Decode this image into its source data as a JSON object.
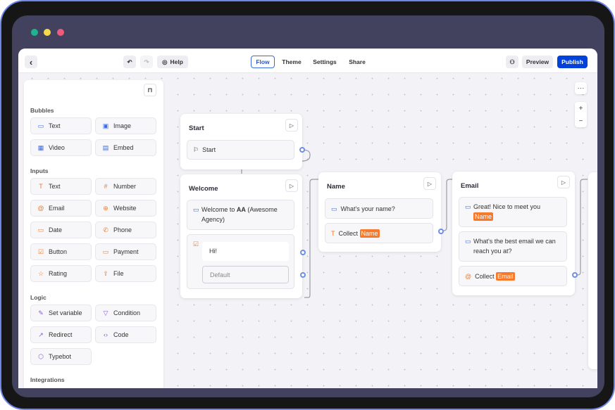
{
  "window": {
    "dots": [
      "#1fb28e",
      "#f6d94a",
      "#f05a7e"
    ]
  },
  "topbar": {
    "back": "‹",
    "undo": "↶",
    "redo": "↷",
    "help": "Help",
    "tabs": [
      "Flow",
      "Theme",
      "Settings",
      "Share"
    ],
    "active_tab": "Flow",
    "collab_icon": "users-icon",
    "preview": "Preview",
    "publish": "Publish",
    "accent": "#0042da"
  },
  "sidebar": {
    "lock_icon": "lock-icon",
    "sections": [
      {
        "title": "Bubbles",
        "items": [
          {
            "label": "Text",
            "icon": "▭"
          },
          {
            "label": "Image",
            "icon": "▣"
          },
          {
            "label": "Video",
            "icon": "▦"
          },
          {
            "label": "Embed",
            "icon": "▤"
          }
        ]
      },
      {
        "title": "Inputs",
        "items": [
          {
            "label": "Text",
            "icon": "T"
          },
          {
            "label": "Number",
            "icon": "#"
          },
          {
            "label": "Email",
            "icon": "@"
          },
          {
            "label": "Website",
            "icon": "⊕"
          },
          {
            "label": "Date",
            "icon": "▭"
          },
          {
            "label": "Phone",
            "icon": "✆"
          },
          {
            "label": "Button",
            "icon": "☑"
          },
          {
            "label": "Payment",
            "icon": "▭"
          },
          {
            "label": "Rating",
            "icon": "☆"
          },
          {
            "label": "File",
            "icon": "⇪"
          }
        ]
      },
      {
        "title": "Logic",
        "items": [
          {
            "label": "Set variable",
            "icon": "✎"
          },
          {
            "label": "Condition",
            "icon": "▽"
          },
          {
            "label": "Redirect",
            "icon": "↗"
          },
          {
            "label": "Code",
            "icon": "‹›"
          },
          {
            "label": "Typebot",
            "icon": "⬡"
          }
        ]
      },
      {
        "title": "Integrations",
        "items": []
      }
    ]
  },
  "canvas": {
    "more": "···",
    "zoom_in": "+",
    "zoom_out": "−",
    "nodes": {
      "start": {
        "title": "Start",
        "block": "Start"
      },
      "welcome": {
        "title": "Welcome",
        "text_pre": "Welcome to ",
        "text_bold": "AA",
        "text_post": " (Awesome Agency)",
        "button": "Hi!",
        "default": "Default"
      },
      "name": {
        "title": "Name",
        "question": "What's your name?",
        "collect": "Collect",
        "var": "Name"
      },
      "email": {
        "title": "Email",
        "greet": "Great! Nice to meet you",
        "greet_var": "Name",
        "question": "What's the best email we can reach you at?",
        "collect": "Collect",
        "var": "Email"
      }
    }
  }
}
